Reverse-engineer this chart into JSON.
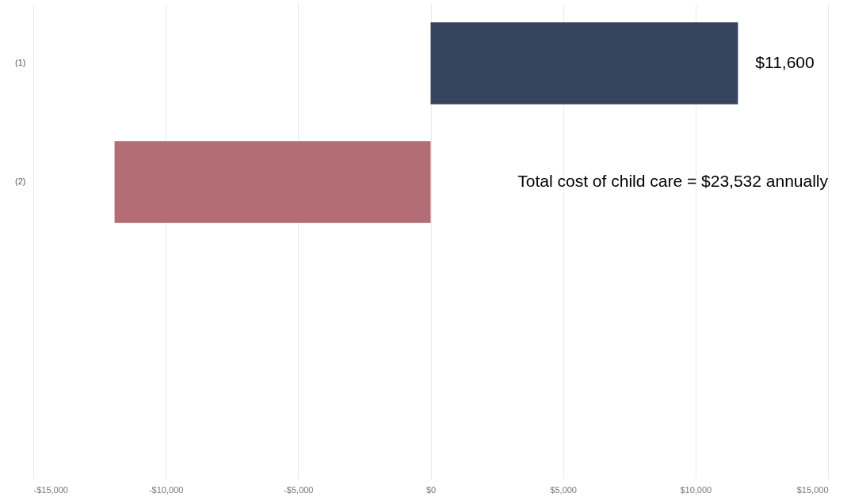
{
  "chart_data": {
    "type": "bar",
    "orientation": "horizontal",
    "categories": [
      "(1)",
      "(2)",
      null,
      null
    ],
    "values": [
      11600,
      -11932,
      null,
      null
    ],
    "colors": [
      "#36445e",
      "#b36d75",
      "#36445e",
      "#36445e"
    ],
    "value_labels": [
      "$11,600",
      null,
      null,
      null
    ],
    "annotations": [
      "Total cost of child care = $23,532 annually"
    ],
    "xlim": [
      -15000,
      15000
    ],
    "xticks": [
      {
        "value": -15000,
        "label": "-$15,000"
      },
      {
        "value": -10000,
        "label": "-$10,000"
      },
      {
        "value": -5000,
        "label": "-$5,000"
      },
      {
        "value": 0,
        "label": "$0"
      },
      {
        "value": 5000,
        "label": "$5,000"
      },
      {
        "value": 10000,
        "label": "$10,000"
      },
      {
        "value": 15000,
        "label": "$15,000"
      }
    ],
    "grid": "x"
  }
}
